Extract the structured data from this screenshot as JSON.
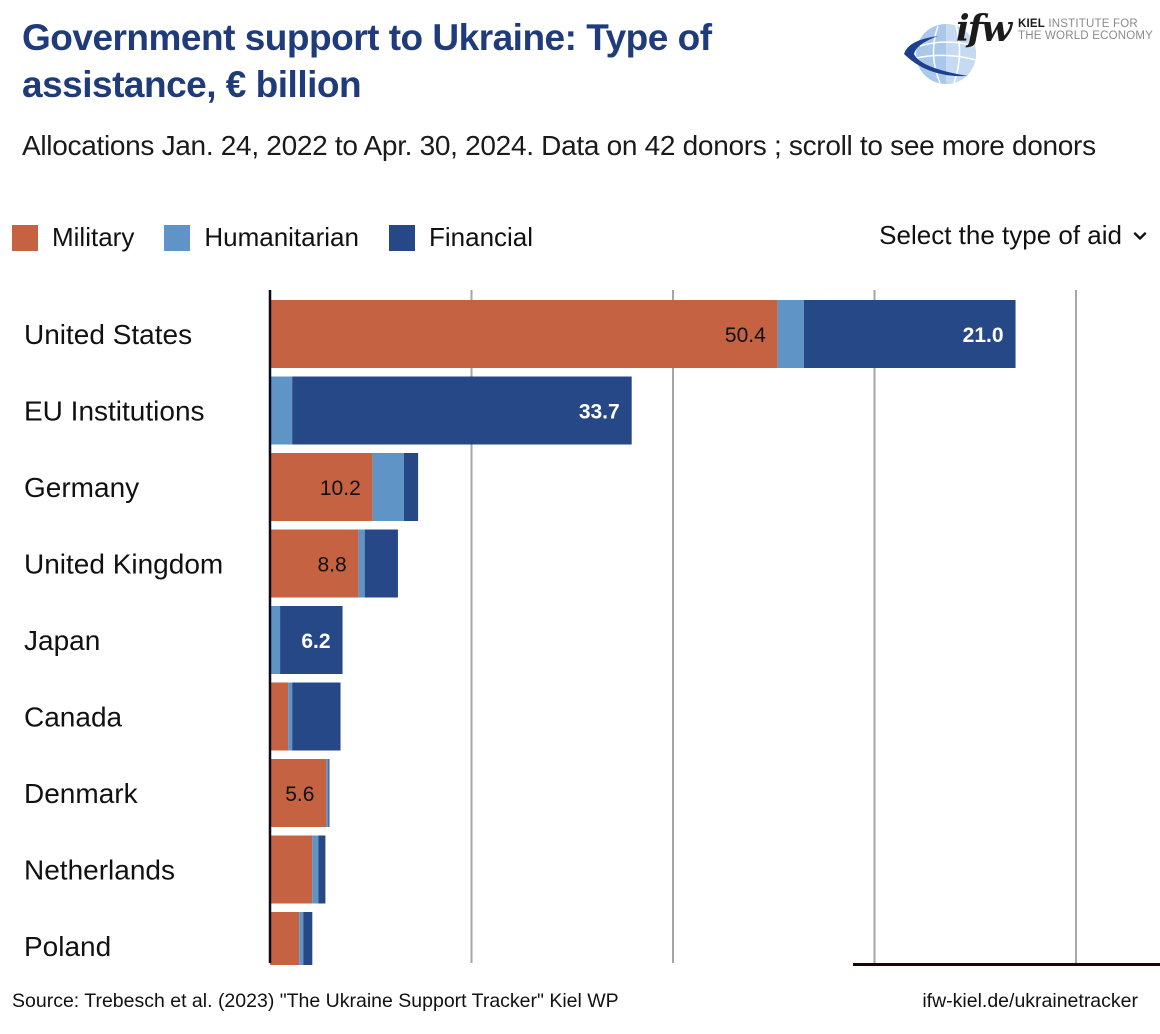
{
  "header": {
    "title": "Government support to Ukraine:  Type of assistance, € billion",
    "subtitle": "Allocations Jan. 24, 2022 to Apr. 30, 2024. Data on 42 donors ; scroll to see more donors"
  },
  "logo": {
    "mark": "ifw",
    "line1_bold": "KIEL",
    "line1_rest": " INSTITUTE FOR",
    "line2": "THE WORLD ECONOMY"
  },
  "controls": {
    "aid_type_select_label": "Select the type of aid",
    "aid_type_select_icon": "chevron-down-icon"
  },
  "footer": {
    "source": "Source: Trebesch et al. (2023) \"The Ukraine Support Tracker\" Kiel WP",
    "url": "ifw-kiel.de/ukrainetracker"
  },
  "colors": {
    "Military": "#c46241",
    "Humanitarian": "#5f95c6",
    "Financial": "#264886",
    "title": "#1f3b7a",
    "gridline": "#a6a6a6",
    "axis": "#0a0a1e"
  },
  "chart_data": {
    "type": "bar",
    "orientation": "horizontal",
    "stacked": true,
    "title": "Government support to Ukraine:  Type of assistance, € billion",
    "subtitle": "Allocations Jan. 24, 2022 to Apr. 30, 2024. Data on 42 donors ; scroll to see more donors",
    "xlabel": "",
    "ylabel": "",
    "xlim": [
      0,
      80
    ],
    "x_gridlines": [
      20,
      40,
      60,
      80
    ],
    "grid": true,
    "legend": {
      "placement": "top-left",
      "entries": [
        "Military",
        "Humanitarian",
        "Financial"
      ]
    },
    "categories": [
      "United States",
      "EU Institutions",
      "Germany",
      "United Kingdom",
      "Japan",
      "Canada",
      "Denmark",
      "Netherlands",
      "Poland"
    ],
    "series": [
      {
        "name": "Military",
        "values": [
          50.4,
          0.0,
          10.2,
          8.8,
          0.0,
          1.8,
          5.6,
          4.2,
          2.9
        ]
      },
      {
        "name": "Humanitarian",
        "values": [
          2.6,
          2.2,
          3.1,
          0.6,
          1.0,
          0.4,
          0.2,
          0.6,
          0.4
        ]
      },
      {
        "name": "Financial",
        "values": [
          21.0,
          33.7,
          1.4,
          3.3,
          6.2,
          4.8,
          0.1,
          0.7,
          0.9
        ]
      }
    ],
    "data_labels": [
      {
        "category": "United States",
        "series": "Military",
        "text": "50.4"
      },
      {
        "category": "United States",
        "series": "Financial",
        "text": "21.0"
      },
      {
        "category": "EU Institutions",
        "series": "Financial",
        "text": "33.7"
      },
      {
        "category": "Germany",
        "series": "Military",
        "text": "10.2"
      },
      {
        "category": "United Kingdom",
        "series": "Military",
        "text": "8.8"
      },
      {
        "category": "Japan",
        "series": "Financial",
        "text": "6.2"
      },
      {
        "category": "Denmark",
        "series": "Military",
        "text": "5.6"
      }
    ]
  }
}
